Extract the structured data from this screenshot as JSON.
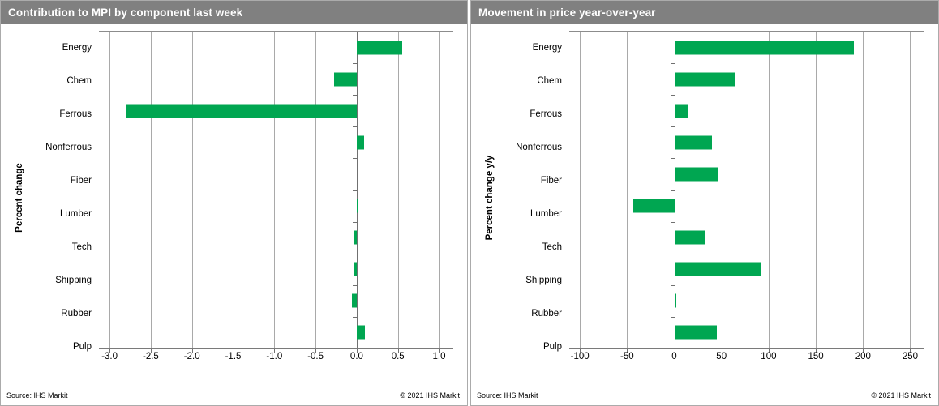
{
  "colors": {
    "bar_green": "#00A651",
    "header_bg": "#808080",
    "header_text": "#ffffff",
    "grid_color": "#a9a9a9",
    "axis_color": "#707070"
  },
  "chart_data": [
    {
      "type": "bar",
      "orientation": "horizontal",
      "title": "Contribution to MPI by component last week",
      "ylabel": "Percent change",
      "categories": [
        "Energy",
        "Chem",
        "Ferrous",
        "Nonferrous",
        "Fiber",
        "Lumber",
        "Tech",
        "Shipping",
        "Rubber",
        "Pulp"
      ],
      "values": [
        0.55,
        -0.27,
        -2.8,
        0.09,
        0.0,
        0.01,
        -0.03,
        -0.03,
        -0.06,
        0.1
      ],
      "xlim": [
        -3.0,
        1.0
      ],
      "xticks": [
        -3.0,
        -2.5,
        -2.0,
        -1.5,
        -1.0,
        -0.5,
        0.0,
        0.5,
        1.0
      ],
      "xtick_labels": [
        "-3.0",
        "-2.5",
        "-2.0",
        "-1.5",
        "-1.0",
        "-0.5",
        "0.0",
        "0.5",
        "1.0"
      ],
      "grid": true,
      "legend": "none",
      "source": "Source: IHS Markit",
      "copyright": "© 2021  IHS Markit"
    },
    {
      "type": "bar",
      "orientation": "horizontal",
      "title": "Movement in price year-over-year",
      "ylabel": "Percent change y/y",
      "categories": [
        "Energy",
        "Chem",
        "Ferrous",
        "Nonferrous",
        "Fiber",
        "Lumber",
        "Tech",
        "Shipping",
        "Rubber",
        "Pulp"
      ],
      "values": [
        190,
        65,
        15,
        40,
        47,
        -43,
        32,
        92,
        2,
        45
      ],
      "xlim": [
        -100,
        250
      ],
      "xticks": [
        -100,
        -50,
        0,
        50,
        100,
        150,
        200,
        250
      ],
      "xtick_labels": [
        "-100",
        "-50",
        "0",
        "50",
        "100",
        "150",
        "200",
        "250"
      ],
      "grid": true,
      "legend": "none",
      "source": "Source: IHS Markit",
      "copyright": "© 2021  IHS Markit"
    }
  ]
}
